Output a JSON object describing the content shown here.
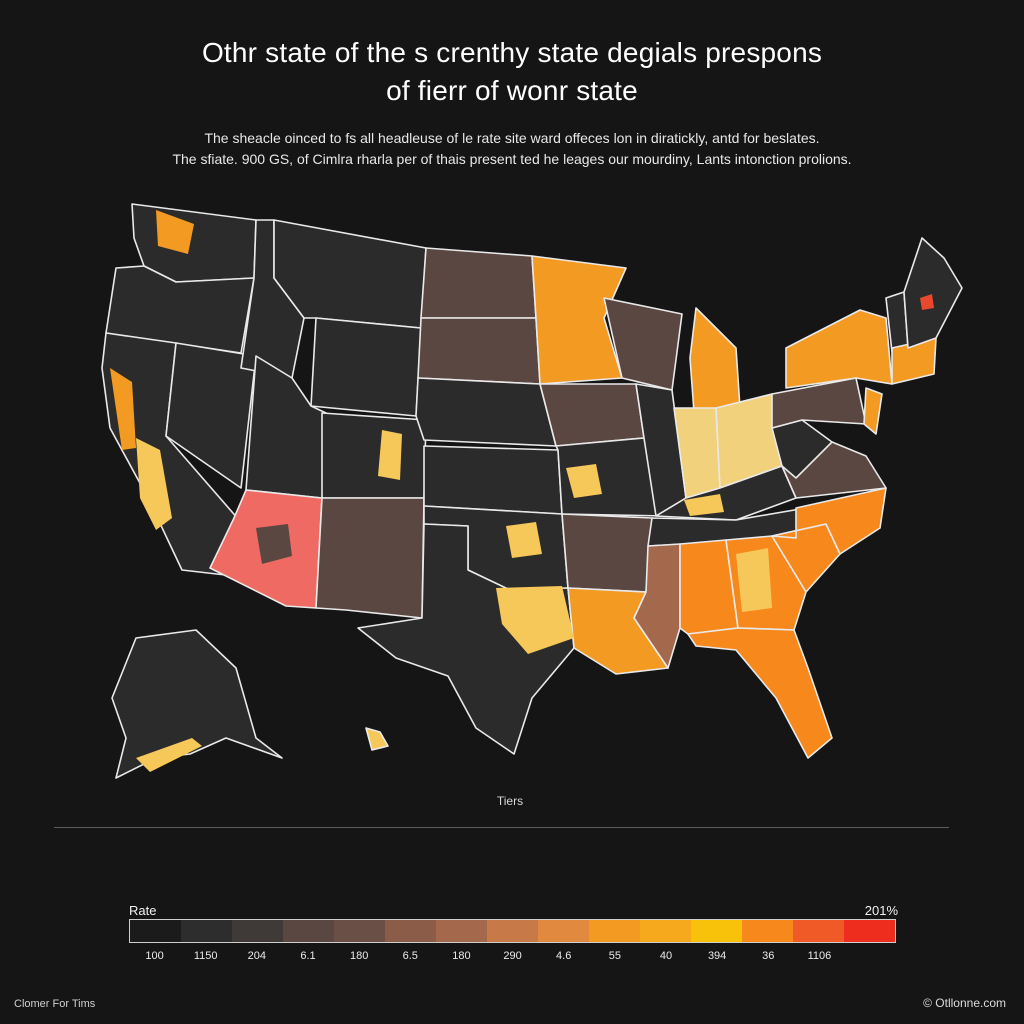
{
  "title": {
    "line1": "Othr state of the s crenthy state degials prespons",
    "line2": "of fierr of wonr state"
  },
  "subtitle": {
    "line1": "The sheacle oinced to fs all headleuse of le rate site ward offeces lon in diratickly, antd for beslates.",
    "line2": "The sfiate. 900 GS, of Cimlra rharla per of thais present ted he leages our mourdiny, Lants intonction prolions."
  },
  "map": {
    "tiers_label": "Tiers",
    "border_color": "#e9e9e9",
    "state_colors": {
      "dark": "#232323",
      "dark2": "#2c2b2b",
      "brown": "#5b4741",
      "brown2": "#6e5249",
      "tan": "#a4684c",
      "orange": "#f39a22",
      "orange_deep": "#f7891c",
      "yellow": "#f6c85a",
      "yellow_light": "#f2d17c",
      "salmon": "#ef6a62",
      "red": "#e8492c"
    },
    "legend": {
      "label": "Rate",
      "max_label": "201%",
      "swatches": [
        "#1b1b1b",
        "#2e2d2d",
        "#3f3a38",
        "#5b4741",
        "#6a4f46",
        "#8b5c48",
        "#a4684c",
        "#c77a48",
        "#e0893f",
        "#f39a22",
        "#f7a91d",
        "#f8c10a",
        "#f7891c",
        "#f05a27",
        "#ef2d1f"
      ],
      "ticks": [
        "100",
        "1150",
        "204",
        "6.1",
        "180",
        "6.5",
        "180",
        "290",
        "4.6",
        "55",
        "40",
        "394",
        "36",
        "1106",
        ""
      ]
    }
  },
  "credits": {
    "left": "Clomer For Tims",
    "right": "© Otllonne.com"
  }
}
